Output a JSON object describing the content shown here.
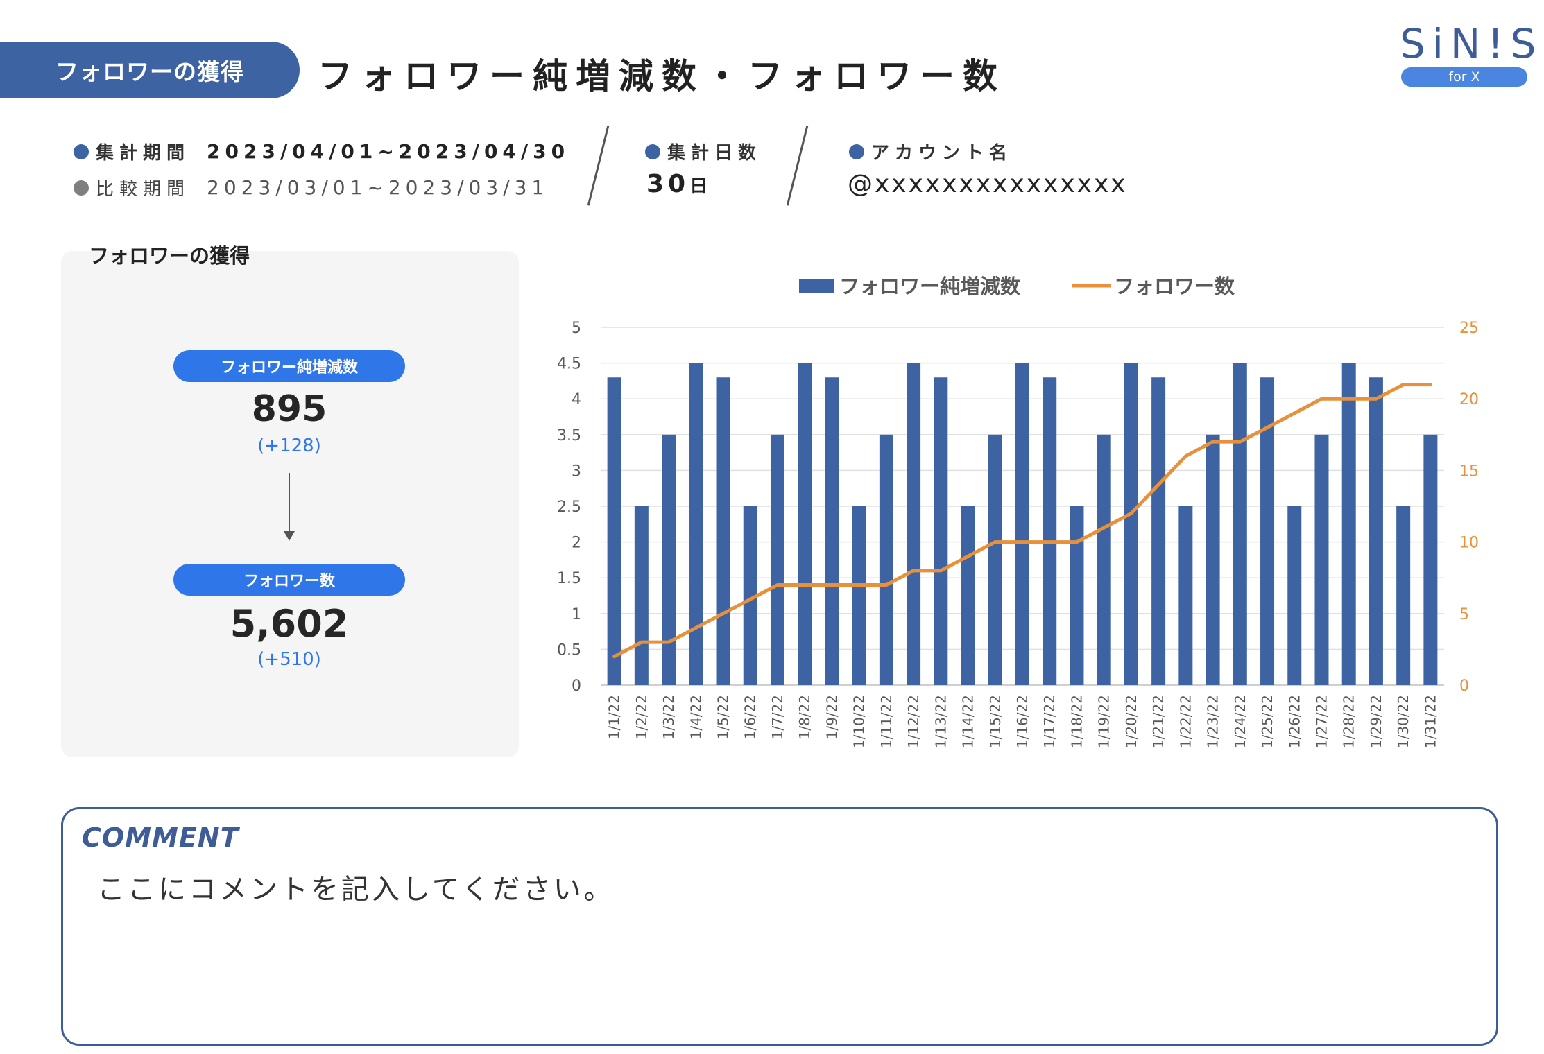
{
  "header": {
    "section_tab": "フォロワーの獲得",
    "page_title": "フォロワー純増減数・フォロワー数"
  },
  "logo": {
    "brand": "SiN!S",
    "sub": "for X"
  },
  "meta": {
    "period_label": "集計期間",
    "period_value": "2023/04/01~2023/04/30",
    "compare_label": "比較期間",
    "compare_value": "2023/03/01~2023/03/31",
    "days_label": "集計日数",
    "days_value": "30",
    "days_unit": "日",
    "account_label": "アカウント名",
    "account_value": "@xxxxxxxxxxxxxxx"
  },
  "panel": {
    "title": "フォロワーの獲得",
    "net_label": "フォロワー純増減数",
    "net_value": "895",
    "net_diff": "(+128)",
    "total_label": "フォロワー数",
    "total_value": "5,602",
    "total_diff": "(+510)"
  },
  "colors": {
    "accent": "#3e63a3",
    "line": "#e8913a",
    "pill": "#2f77e8",
    "frame": "#3e5d96"
  },
  "chart_data": {
    "type": "bar",
    "title": "",
    "xlabel": "",
    "ylabel": "",
    "categories": [
      "1/1/22",
      "1/2/22",
      "1/3/22",
      "1/4/22",
      "1/5/22",
      "1/6/22",
      "1/7/22",
      "1/8/22",
      "1/9/22",
      "1/10/22",
      "1/11/22",
      "1/12/22",
      "1/13/22",
      "1/14/22",
      "1/15/22",
      "1/16/22",
      "1/17/22",
      "1/18/22",
      "1/19/22",
      "1/20/22",
      "1/21/22",
      "1/22/22",
      "1/23/22",
      "1/24/22",
      "1/25/22",
      "1/26/22",
      "1/27/22",
      "1/28/22",
      "1/29/22",
      "1/30/22",
      "1/31/22"
    ],
    "series": [
      {
        "name": "フォロワー純増減数",
        "type": "bar",
        "axis": "left",
        "values": [
          4.3,
          2.5,
          3.5,
          4.5,
          4.3,
          2.5,
          3.5,
          4.5,
          4.3,
          2.5,
          3.5,
          4.5,
          4.3,
          2.5,
          3.5,
          4.5,
          4.3,
          2.5,
          3.5,
          4.5,
          4.3,
          2.5,
          3.5,
          4.5,
          4.3,
          2.5,
          3.5,
          4.5,
          4.3,
          2.5,
          3.5
        ]
      },
      {
        "name": "フォロワー数",
        "type": "line",
        "axis": "right",
        "values": [
          2,
          3,
          3,
          4,
          5,
          6,
          7,
          7,
          7,
          7,
          7,
          8,
          8,
          9,
          10,
          10,
          10,
          10,
          11,
          12,
          14,
          16,
          17,
          17,
          18,
          19,
          20,
          20,
          20,
          21,
          21
        ]
      }
    ],
    "ylim": [
      0,
      5
    ],
    "y_ticks": [
      "0",
      "0.5",
      "1",
      "1.5",
      "2",
      "2.5",
      "3",
      "3.5",
      "4",
      "4.5",
      "5"
    ],
    "y2lim": [
      0,
      25
    ],
    "y2_ticks": [
      "0",
      "5",
      "10",
      "15",
      "20",
      "25"
    ],
    "legend": "top-center",
    "grid": true
  },
  "comment": {
    "title": "COMMENT",
    "text": "ここにコメントを記入してください。"
  }
}
